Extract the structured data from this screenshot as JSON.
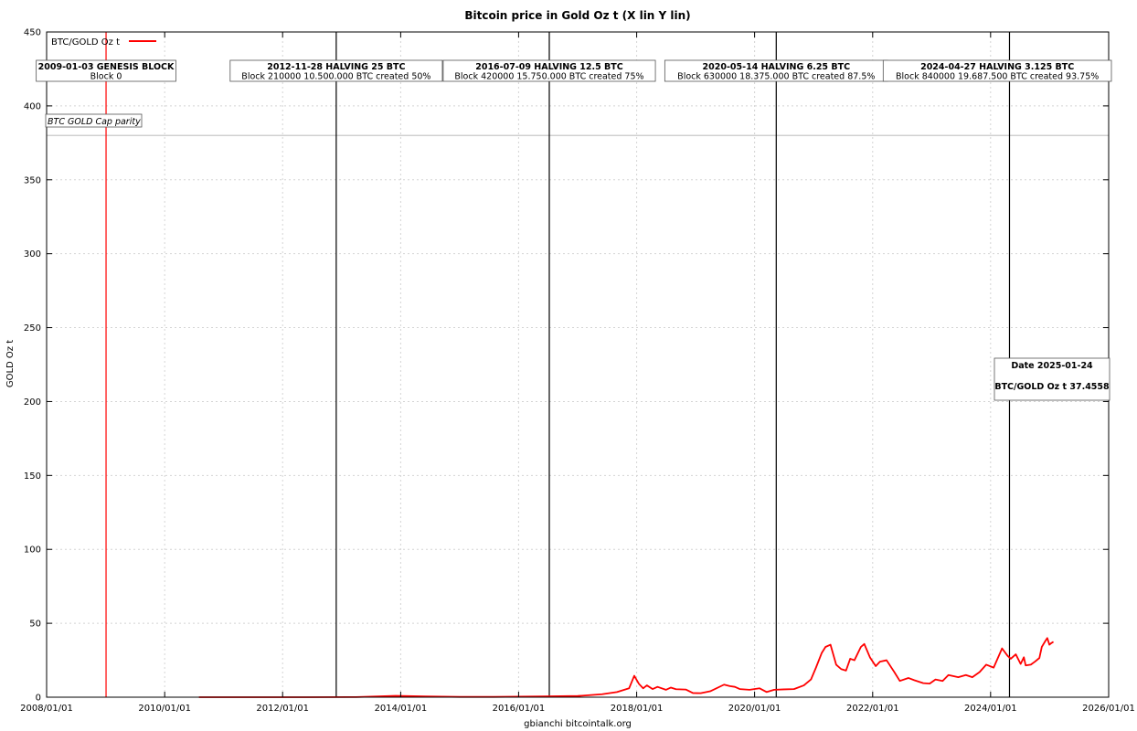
{
  "chart_data": {
    "type": "line",
    "title": "Bitcoin price in Gold Oz t (X lin Y lin)",
    "xlabel": "gbianchi bitcointalk.org",
    "ylabel": "GOLD Oz t",
    "xlim": [
      "2008-01-01",
      "2026-01-01"
    ],
    "ylim": [
      0,
      450
    ],
    "x_ticks": [
      "2008/01/01",
      "2010/01/01",
      "2012/01/01",
      "2014/01/01",
      "2016/01/01",
      "2018/01/01",
      "2020/01/01",
      "2022/01/01",
      "2024/01/01",
      "2026/01/01"
    ],
    "y_ticks": [
      0,
      50,
      100,
      150,
      200,
      250,
      300,
      350,
      400,
      450
    ],
    "grid": true,
    "legend_position": "top-left",
    "series": [
      {
        "name": "BTC/GOLD Oz t",
        "color": "#ff0000",
        "points": [
          [
            "2010-08-01",
            0.01
          ],
          [
            "2011-06-01",
            0.02
          ],
          [
            "2012-06-01",
            0.01
          ],
          [
            "2013-04-01",
            0.08
          ],
          [
            "2013-12-01",
            0.9
          ],
          [
            "2014-06-01",
            0.5
          ],
          [
            "2015-01-01",
            0.2
          ],
          [
            "2015-08-01",
            0.2
          ],
          [
            "2016-06-01",
            0.5
          ],
          [
            "2017-01-01",
            0.8
          ],
          [
            "2017-06-01",
            2.0
          ],
          [
            "2017-09-01",
            3.5
          ],
          [
            "2017-11-15",
            6.0
          ],
          [
            "2017-12-17",
            14.5
          ],
          [
            "2018-01-15",
            9.0
          ],
          [
            "2018-02-10",
            6.0
          ],
          [
            "2018-03-05",
            8.0
          ],
          [
            "2018-04-10",
            5.5
          ],
          [
            "2018-05-10",
            7.0
          ],
          [
            "2018-07-01",
            5.0
          ],
          [
            "2018-08-01",
            6.5
          ],
          [
            "2018-09-01",
            5.4
          ],
          [
            "2018-11-01",
            5.2
          ],
          [
            "2018-12-15",
            2.8
          ],
          [
            "2019-02-01",
            2.7
          ],
          [
            "2019-04-01",
            4.0
          ],
          [
            "2019-06-26",
            8.5
          ],
          [
            "2019-08-01",
            7.5
          ],
          [
            "2019-09-01",
            7.0
          ],
          [
            "2019-10-01",
            5.5
          ],
          [
            "2019-12-01",
            5.0
          ],
          [
            "2020-02-01",
            6.0
          ],
          [
            "2020-03-15",
            3.5
          ],
          [
            "2020-05-01",
            5.0
          ],
          [
            "2020-07-01",
            5.3
          ],
          [
            "2020-09-01",
            5.5
          ],
          [
            "2020-11-01",
            8.0
          ],
          [
            "2020-12-15",
            12.0
          ],
          [
            "2021-01-15",
            20.0
          ],
          [
            "2021-02-20",
            30.0
          ],
          [
            "2021-03-15",
            34.0
          ],
          [
            "2021-04-15",
            35.5
          ],
          [
            "2021-05-20",
            22.0
          ],
          [
            "2021-06-20",
            19.0
          ],
          [
            "2021-07-20",
            18.0
          ],
          [
            "2021-08-15",
            26.0
          ],
          [
            "2021-09-10",
            25.0
          ],
          [
            "2021-10-20",
            34.0
          ],
          [
            "2021-11-10",
            36.0
          ],
          [
            "2021-12-15",
            27.0
          ],
          [
            "2022-01-20",
            21.0
          ],
          [
            "2022-02-15",
            24.0
          ],
          [
            "2022-03-28",
            25.0
          ],
          [
            "2022-05-15",
            17.0
          ],
          [
            "2022-06-18",
            11.0
          ],
          [
            "2022-08-10",
            13.0
          ],
          [
            "2022-09-15",
            11.5
          ],
          [
            "2022-11-10",
            9.5
          ],
          [
            "2022-12-20",
            9.2
          ],
          [
            "2023-01-25",
            12.0
          ],
          [
            "2023-03-10",
            11.0
          ],
          [
            "2023-04-15",
            15.0
          ],
          [
            "2023-06-15",
            13.5
          ],
          [
            "2023-08-01",
            15.0
          ],
          [
            "2023-09-10",
            13.5
          ],
          [
            "2023-10-25",
            17.0
          ],
          [
            "2023-12-05",
            22.0
          ],
          [
            "2024-01-20",
            20.0
          ],
          [
            "2024-03-12",
            33.0
          ],
          [
            "2024-04-15",
            28.0
          ],
          [
            "2024-05-05",
            26.0
          ],
          [
            "2024-06-05",
            29.0
          ],
          [
            "2024-07-05",
            22.5
          ],
          [
            "2024-07-25",
            27.0
          ],
          [
            "2024-08-05",
            21.5
          ],
          [
            "2024-09-06",
            22.0
          ],
          [
            "2024-10-01",
            24.0
          ],
          [
            "2024-10-29",
            26.5
          ],
          [
            "2024-11-13",
            34.0
          ],
          [
            "2024-12-05",
            38.0
          ],
          [
            "2024-12-17",
            40.0
          ],
          [
            "2024-12-30",
            35.5
          ],
          [
            "2025-01-10",
            36.5
          ],
          [
            "2025-01-24",
            37.4558
          ]
        ]
      }
    ],
    "reference_lines": [
      {
        "label": "BTC GOLD Cap parity",
        "value": 380,
        "color": "#c8c8c8"
      }
    ],
    "event_lines": [
      {
        "date": "2009-01-03",
        "color": "#ff0000",
        "line1": "2009-01-03 GENESIS BLOCK",
        "line2": "Block 0"
      },
      {
        "date": "2012-11-28",
        "color": "#000000",
        "line1": "2012-11-28 HALVING 25 BTC",
        "line2": "Block 210000 10.500.000 BTC created 50%"
      },
      {
        "date": "2016-07-09",
        "color": "#000000",
        "line1": "2016-07-09 HALVING 12.5 BTC",
        "line2": "Block 420000 15.750.000 BTC created 75%"
      },
      {
        "date": "2020-05-14",
        "color": "#000000",
        "line1": "2020-05-14 HALVING 6.25 BTC",
        "line2": "Block 630000 18.375.000 BTC created 87.5%"
      },
      {
        "date": "2024-04-27",
        "color": "#000000",
        "line1": "2024-04-27 HALVING 3.125 BTC",
        "line2": "Block 840000 19.687.500 BTC created 93.75%"
      }
    ],
    "info_box": {
      "line1": "Date 2025-01-24",
      "line2": "BTC/GOLD Oz t 37.4558"
    }
  }
}
